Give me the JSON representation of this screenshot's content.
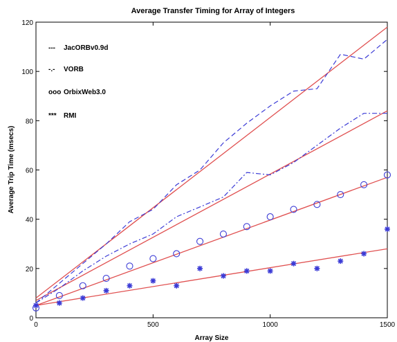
{
  "chart_data": {
    "type": "line",
    "title": "Average Transfer Timing for Array of Integers",
    "xlabel": "Array Size",
    "ylabel": "Average Trip Time (msecs)",
    "xlim": [
      0,
      1500
    ],
    "ylim": [
      0,
      120
    ],
    "xticks": [
      0,
      500,
      1000,
      1500
    ],
    "yticks": [
      0,
      20,
      40,
      60,
      80,
      100,
      120
    ],
    "grid": false,
    "legend_position": "top-left",
    "x": [
      0,
      100,
      200,
      300,
      400,
      500,
      600,
      700,
      800,
      900,
      1000,
      1100,
      1200,
      1300,
      1400,
      1500
    ],
    "series": [
      {
        "name": "JacORBv0.9d",
        "style": "dashed",
        "color": "#3b3bd6",
        "values": [
          6,
          14,
          22,
          30,
          39,
          44,
          54,
          60,
          71,
          79,
          86,
          92,
          93,
          107,
          105,
          113
        ]
      },
      {
        "name": "VORB",
        "style": "dashdot",
        "color": "#3b3bd6",
        "values": [
          6,
          12,
          19,
          25,
          30,
          34,
          41,
          45,
          49,
          59,
          58,
          63,
          70,
          77,
          83,
          83
        ]
      },
      {
        "name": "OrbixWeb3.0",
        "style": "circle",
        "color": "#3b3bd6",
        "values": [
          4,
          9,
          13,
          16,
          21,
          24,
          26,
          31,
          34,
          37,
          41,
          44,
          46,
          50,
          54,
          58
        ]
      },
      {
        "name": "RMI",
        "style": "star",
        "color": "#3b3bd6",
        "values": [
          5,
          6,
          8,
          11,
          13,
          15,
          13,
          20,
          17,
          19,
          19,
          22,
          20,
          23,
          26,
          36
        ]
      }
    ],
    "fit_lines": [
      {
        "color": "#e05050",
        "values": [
          8,
          118
        ]
      },
      {
        "color": "#e05050",
        "values": [
          7,
          84
        ]
      },
      {
        "color": "#e05050",
        "values": [
          5,
          57
        ]
      },
      {
        "color": "#e05050",
        "values": [
          5,
          28
        ]
      }
    ],
    "legend": [
      {
        "symbol": "---",
        "label": "JacORBv0.9d"
      },
      {
        "symbol": "-.-",
        "label": "VORB"
      },
      {
        "symbol": "ooo",
        "label": "OrbixWeb3.0"
      },
      {
        "symbol": "***",
        "label": "RMI"
      }
    ]
  }
}
